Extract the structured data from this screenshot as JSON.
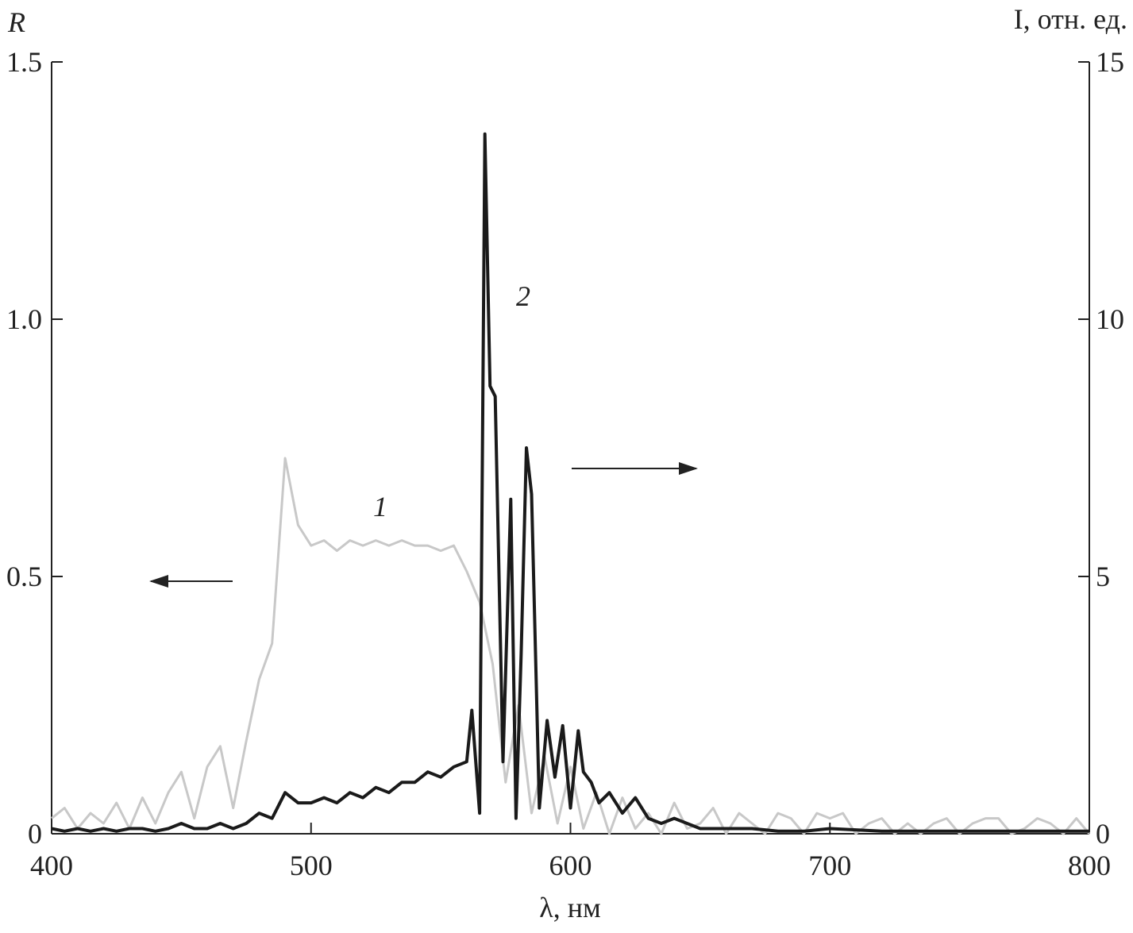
{
  "chart_data": {
    "type": "line",
    "ylabel": "R",
    "y2label": "I, отн. ед.",
    "xlabel": "λ, нм",
    "xlim": [
      400,
      800
    ],
    "xticks": [
      400,
      500,
      600,
      700,
      800
    ],
    "ylim": [
      0,
      1.5
    ],
    "yticks": [
      0,
      0.5,
      {
        "value": 1,
        "label": "1.0"
      },
      1.5
    ],
    "y2lim": [
      0,
      15
    ],
    "y2ticks": [
      0,
      5,
      10,
      15
    ],
    "annotations": [
      "1",
      "2"
    ],
    "series": [
      {
        "name": "1",
        "color": "#c8c8c8",
        "axis": "y",
        "x": [
          400,
          405,
          410,
          415,
          420,
          425,
          430,
          435,
          440,
          445,
          450,
          455,
          460,
          465,
          470,
          475,
          480,
          485,
          490,
          495,
          500,
          505,
          510,
          515,
          520,
          525,
          530,
          535,
          540,
          545,
          550,
          555,
          560,
          565,
          570,
          575,
          580,
          585,
          590,
          595,
          600,
          605,
          610,
          615,
          620,
          625,
          630,
          635,
          640,
          645,
          650,
          655,
          660,
          665,
          670,
          675,
          680,
          685,
          690,
          695,
          700,
          705,
          710,
          715,
          720,
          725,
          730,
          735,
          740,
          745,
          750,
          755,
          760,
          765,
          770,
          775,
          780,
          785,
          790,
          795,
          800
        ],
        "values": [
          0.03,
          0.05,
          0.01,
          0.04,
          0.02,
          0.06,
          0.01,
          0.07,
          0.02,
          0.08,
          0.12,
          0.03,
          0.13,
          0.17,
          0.05,
          0.18,
          0.3,
          0.37,
          0.73,
          0.6,
          0.56,
          0.57,
          0.55,
          0.57,
          0.56,
          0.57,
          0.56,
          0.57,
          0.56,
          0.56,
          0.55,
          0.56,
          0.51,
          0.45,
          0.33,
          0.1,
          0.25,
          0.04,
          0.15,
          0.02,
          0.13,
          0.01,
          0.08,
          0.0,
          0.07,
          0.01,
          0.04,
          0.0,
          0.06,
          0.01,
          0.02,
          0.05,
          0.0,
          0.04,
          0.02,
          0.0,
          0.04,
          0.03,
          0.0,
          0.04,
          0.03,
          0.04,
          0.0,
          0.02,
          0.03,
          0.0,
          0.02,
          0.0,
          0.02,
          0.03,
          0.0,
          0.02,
          0.03,
          0.03,
          0.0,
          0.01,
          0.03,
          0.02,
          0.0,
          0.03,
          0.0
        ]
      },
      {
        "name": "2",
        "color": "#1a1a1a",
        "axis": "y2",
        "x": [
          400,
          405,
          410,
          415,
          420,
          425,
          430,
          435,
          440,
          445,
          450,
          455,
          460,
          465,
          470,
          475,
          480,
          485,
          490,
          495,
          500,
          505,
          510,
          515,
          520,
          525,
          530,
          535,
          540,
          545,
          550,
          555,
          560,
          562,
          565,
          567,
          569,
          571,
          574,
          577,
          579,
          581,
          583,
          585,
          588,
          591,
          594,
          597,
          600,
          603,
          605,
          608,
          611,
          615,
          620,
          625,
          630,
          635,
          640,
          650,
          660,
          670,
          680,
          690,
          700,
          720,
          740,
          760,
          780,
          800
        ],
        "values": [
          0.1,
          0.05,
          0.1,
          0.05,
          0.1,
          0.05,
          0.1,
          0.1,
          0.05,
          0.1,
          0.2,
          0.1,
          0.1,
          0.2,
          0.1,
          0.2,
          0.4,
          0.3,
          0.8,
          0.6,
          0.6,
          0.7,
          0.6,
          0.8,
          0.7,
          0.9,
          0.8,
          1.0,
          1.0,
          1.2,
          1.1,
          1.3,
          1.4,
          2.4,
          0.4,
          13.6,
          8.7,
          8.5,
          1.4,
          6.5,
          0.3,
          3.5,
          7.5,
          6.6,
          0.5,
          2.2,
          1.1,
          2.1,
          0.5,
          2.0,
          1.2,
          1.0,
          0.6,
          0.8,
          0.4,
          0.7,
          0.3,
          0.2,
          0.3,
          0.1,
          0.1,
          0.1,
          0.05,
          0.05,
          0.1,
          0.05,
          0.05,
          0.05,
          0.05,
          0.05
        ]
      }
    ]
  }
}
